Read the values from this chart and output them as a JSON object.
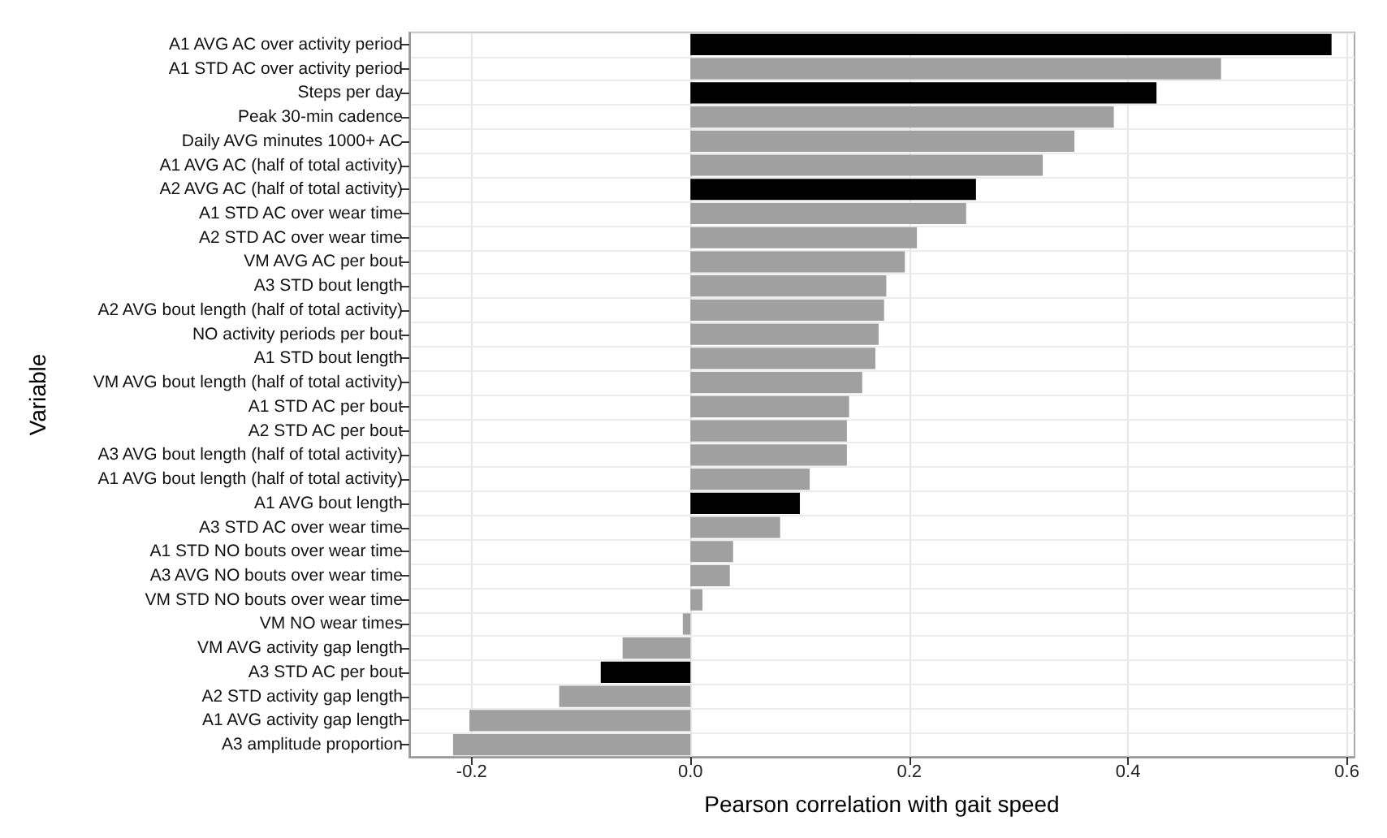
{
  "chart_data": {
    "type": "bar",
    "orientation": "horizontal",
    "xlabel": "Pearson correlation with gait speed",
    "ylabel": "Variable",
    "categories": [
      "A1 AVG AC over activity period",
      "A1 STD AC over activity period",
      "Steps per day",
      "Peak 30-min cadence",
      "Daily AVG minutes 1000+ AC",
      "A1 AVG AC (half of total activity)",
      "A2 AVG AC (half of total activity)",
      "A1 STD AC over wear time",
      "A2 STD AC over wear time",
      "VM AVG AC per bout",
      "A3 STD bout length",
      "A2 AVG bout length (half of total activity)",
      "NO activity periods per bout",
      "A1 STD bout length",
      "VM AVG bout length (half of total activity)",
      "A1 STD AC per bout",
      "A2 STD AC per bout",
      "A3 AVG bout length (half of total activity)",
      "A1 AVG bout length (half of total activity)",
      "A1 AVG bout length",
      "A3 STD AC over wear time",
      "A1 STD NO bouts over wear time",
      "A3 AVG NO bouts over wear time",
      "VM STD NO bouts over wear time",
      "VM NO wear times",
      "VM AVG activity gap length",
      "A3 STD AC per bout",
      "A2 STD activity gap length",
      "A1 AVG activity gap length",
      "A3 amplitude proportion"
    ],
    "values": [
      0.586,
      0.485,
      0.426,
      0.387,
      0.351,
      0.322,
      0.261,
      0.252,
      0.207,
      0.196,
      0.179,
      0.177,
      0.172,
      0.169,
      0.157,
      0.145,
      0.143,
      0.143,
      0.109,
      0.1,
      0.082,
      0.039,
      0.036,
      0.011,
      -0.007,
      -0.062,
      -0.082,
      -0.12,
      -0.202,
      -0.217
    ],
    "colors": [
      "#000000",
      "#a0a0a0",
      "#000000",
      "#a0a0a0",
      "#a0a0a0",
      "#a0a0a0",
      "#000000",
      "#a0a0a0",
      "#a0a0a0",
      "#a0a0a0",
      "#a0a0a0",
      "#a0a0a0",
      "#a0a0a0",
      "#a0a0a0",
      "#a0a0a0",
      "#a0a0a0",
      "#a0a0a0",
      "#a0a0a0",
      "#a0a0a0",
      "#000000",
      "#a0a0a0",
      "#a0a0a0",
      "#a0a0a0",
      "#a0a0a0",
      "#a0a0a0",
      "#a0a0a0",
      "#000000",
      "#a0a0a0",
      "#a0a0a0",
      "#a0a0a0"
    ],
    "xlim": [
      -0.257,
      0.607
    ],
    "xticks": [
      {
        "value": -0.2,
        "label": "-0.2"
      },
      {
        "value": 0,
        "label": "0.0"
      },
      {
        "value": 0.2,
        "label": "0.2"
      },
      {
        "value": 0.4,
        "label": "0.4"
      },
      {
        "value": 0.6,
        "label": "0.6"
      }
    ],
    "grid": true
  }
}
